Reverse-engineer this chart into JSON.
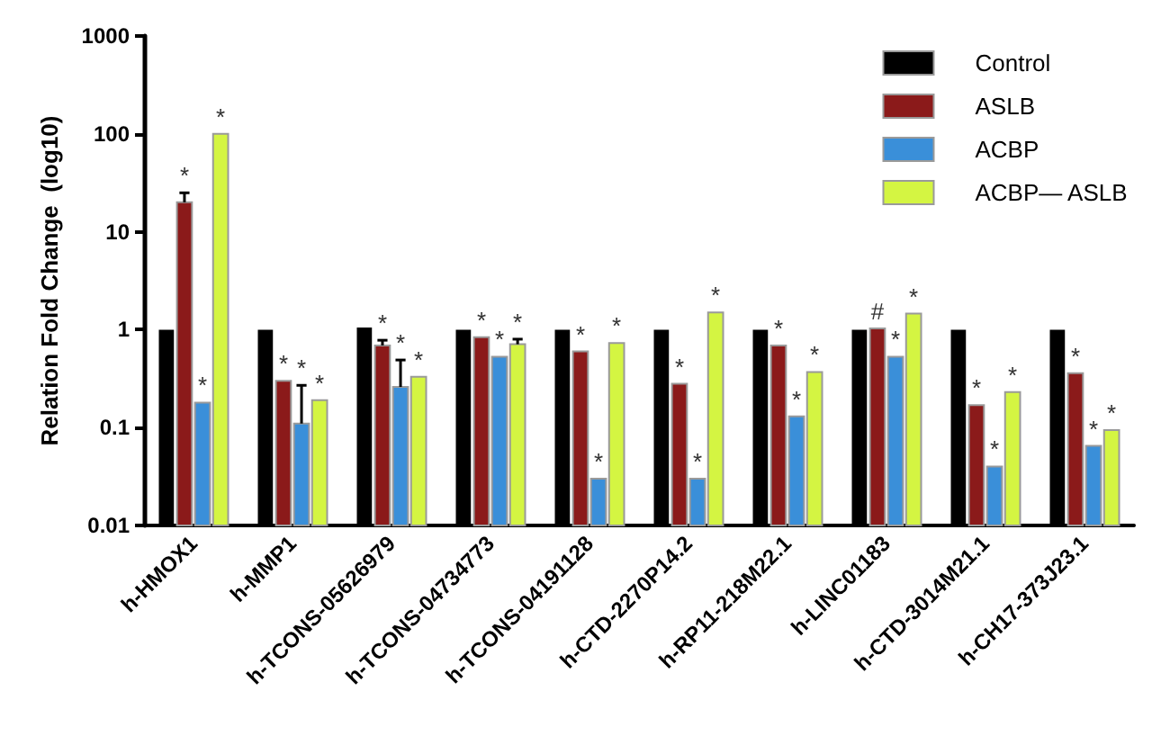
{
  "chart_data": {
    "type": "bar",
    "ylabel": "Relation Fold Change  (log10)",
    "log": true,
    "legend": "top right",
    "ylim": [
      0.01,
      1000
    ],
    "yticks": [
      0.01,
      0.1,
      1,
      10,
      100,
      1000
    ],
    "categories": [
      "h-HMOX1",
      "h-MMP1",
      "h-TCONS-05626979",
      "h-TCONS-04734773",
      "h-TCONS-04191128",
      "h-CTD-2270P14.2",
      "h-RP11-218M22.1",
      "h-LINC01183",
      "h-CTD-3014M21.1",
      "h-CH17-373J23.1"
    ],
    "series": [
      {
        "name": "Control",
        "color": "#000000",
        "values": [
          1,
          1,
          1.05,
          1,
          1,
          1,
          1,
          1,
          1,
          1
        ]
      },
      {
        "name": "ASLB",
        "color": "#8b1a1a",
        "values": [
          20,
          0.3,
          0.69,
          0.84,
          0.6,
          0.28,
          0.69,
          1.03,
          0.17,
          0.36
        ],
        "errors": [
          [
            20,
            25
          ],
          null,
          [
            0.69,
            0.78
          ],
          null,
          null,
          null,
          null,
          null,
          null,
          null
        ],
        "value_labels": [
          "*",
          "*",
          "*",
          "*",
          "*",
          "*",
          "*",
          "#",
          "*",
          "*"
        ]
      },
      {
        "name": "ACBP",
        "color": "#3a8fd9",
        "values": [
          0.18,
          0.11,
          0.26,
          0.53,
          0.03,
          0.03,
          0.13,
          0.53,
          0.04,
          0.065
        ],
        "errors": [
          null,
          [
            0.11,
            0.27
          ],
          [
            0.26,
            0.49
          ],
          null,
          null,
          null,
          null,
          null,
          null,
          null
        ],
        "value_labels": [
          "*",
          "*",
          "*",
          "*",
          "*",
          "*",
          "*",
          "*",
          "*",
          "*"
        ]
      },
      {
        "name": "ACBP— ASLB",
        "color": "#d4f542",
        "values": [
          100,
          0.19,
          0.33,
          0.71,
          0.73,
          1.5,
          0.37,
          1.46,
          0.23,
          0.094
        ],
        "errors": [
          null,
          null,
          null,
          [
            0.71,
            0.8
          ],
          null,
          null,
          null,
          null,
          null,
          null
        ],
        "value_labels": [
          "*",
          "*",
          "*",
          "*",
          "*",
          "*",
          "*",
          "*",
          "*",
          "*"
        ]
      }
    ]
  }
}
